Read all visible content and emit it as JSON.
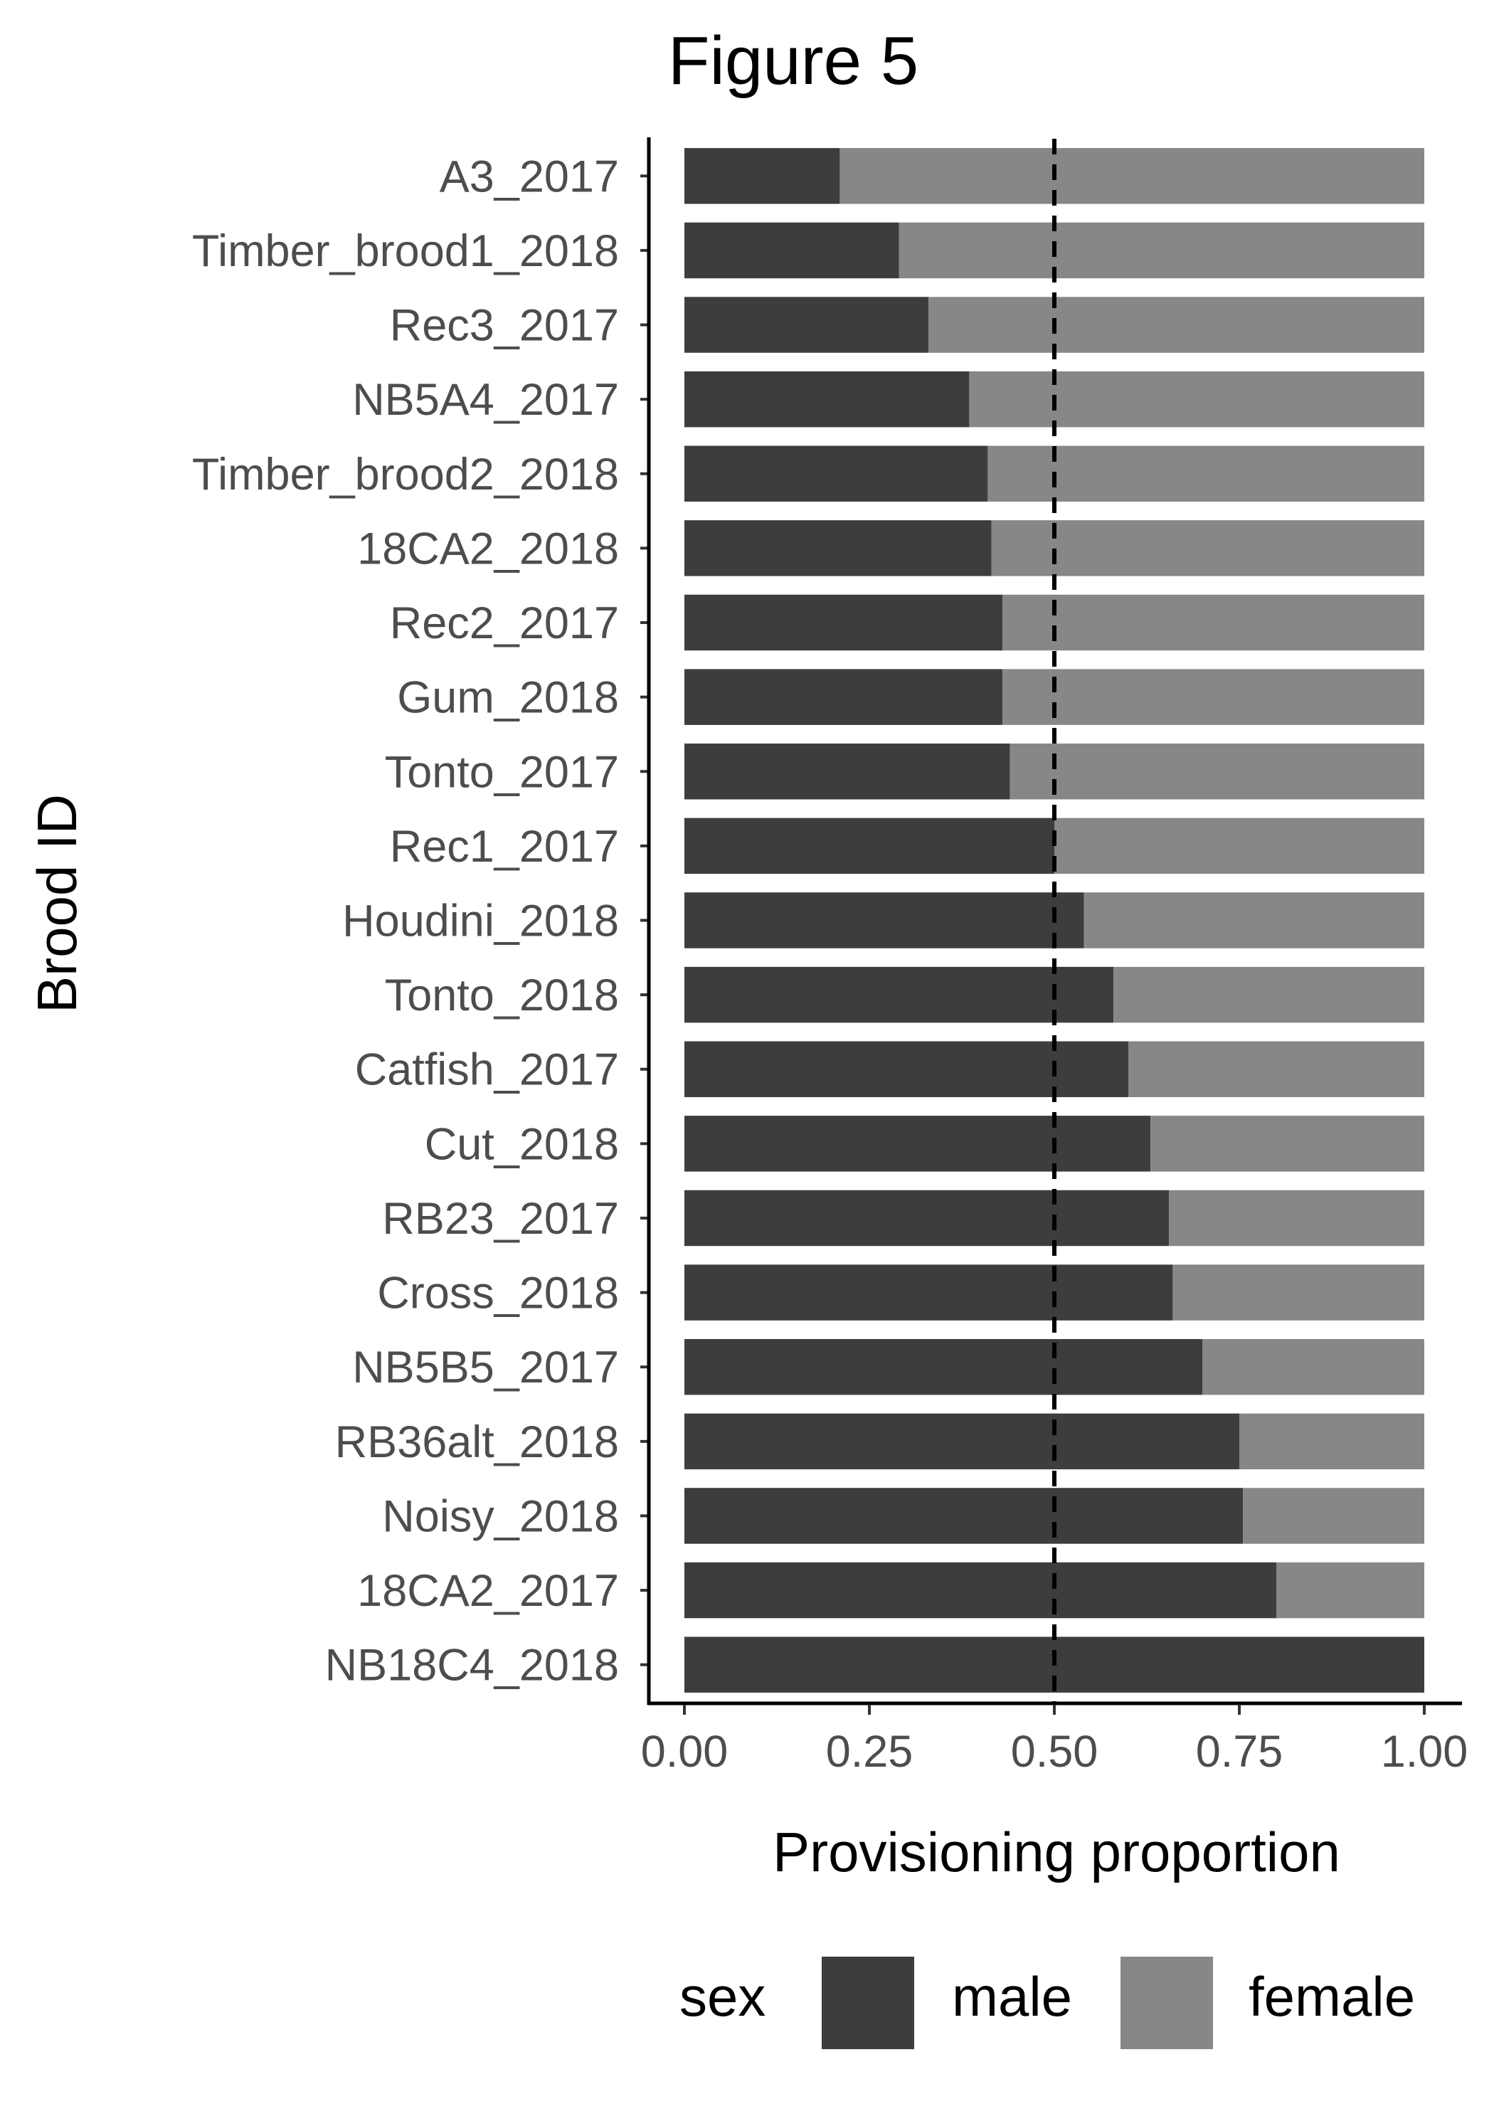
{
  "chart_data": {
    "type": "bar",
    "orientation": "horizontal",
    "stacked": true,
    "title": "Figure 5",
    "xlabel": "Provisioning proportion",
    "ylabel": "Brood ID",
    "xlim": [
      0,
      1
    ],
    "xticks": [
      "0.00",
      "0.25",
      "0.50",
      "0.75",
      "1.00"
    ],
    "xtick_values": [
      0,
      0.25,
      0.5,
      0.75,
      1.0
    ],
    "grid": false,
    "reference_line": {
      "x": 0.5,
      "style": "dashed",
      "color": "#000000"
    },
    "categories": [
      "A3_2017",
      "Timber_brood1_2018",
      "Rec3_2017",
      "NB5A4_2017",
      "Timber_brood2_2018",
      "18CA2_2018",
      "Rec2_2017",
      "Gum_2018",
      "Tonto_2017",
      "Rec1_2017",
      "Houdini_2018",
      "Tonto_2018",
      "Catfish_2017",
      "Cut_2018",
      "RB23_2017",
      "Cross_2018",
      "NB5B5_2017",
      "RB36alt_2018",
      "Noisy_2018",
      "18CA2_2017",
      "NB18C4_2018"
    ],
    "series": [
      {
        "name": "male",
        "color": "#3d3d3d",
        "values": [
          0.21,
          0.29,
          0.33,
          0.385,
          0.41,
          0.415,
          0.43,
          0.43,
          0.44,
          0.5,
          0.54,
          0.58,
          0.6,
          0.63,
          0.655,
          0.66,
          0.7,
          0.75,
          0.755,
          0.8,
          1.0
        ]
      },
      {
        "name": "female",
        "color": "#878787",
        "values": [
          0.79,
          0.71,
          0.67,
          0.615,
          0.59,
          0.585,
          0.57,
          0.57,
          0.56,
          0.5,
          0.46,
          0.42,
          0.4,
          0.37,
          0.345,
          0.34,
          0.3,
          0.25,
          0.245,
          0.2,
          0.0
        ]
      }
    ],
    "legend": {
      "title": "sex",
      "position": "bottom",
      "items": [
        "male",
        "female"
      ]
    }
  }
}
